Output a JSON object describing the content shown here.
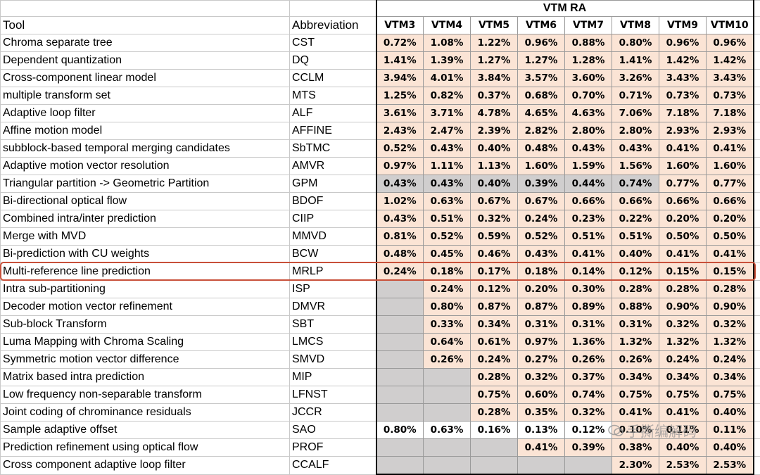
{
  "header": {
    "group_label": "VTM RA",
    "col_tool": "Tool",
    "col_abbr": "Abbreviation",
    "versions": [
      "VTM3",
      "VTM4",
      "VTM5",
      "VTM6",
      "VTM7",
      "VTM8",
      "VTM9",
      "VTM10"
    ]
  },
  "rows": [
    {
      "tool": "Chroma separate tree",
      "abbr": "CST",
      "vals": [
        "0.72%",
        "1.08%",
        "1.22%",
        "0.96%",
        "0.88%",
        "0.80%",
        "0.96%",
        "0.96%"
      ]
    },
    {
      "tool": "Dependent quantization",
      "abbr": "DQ",
      "vals": [
        "1.41%",
        "1.39%",
        "1.27%",
        "1.27%",
        "1.28%",
        "1.41%",
        "1.42%",
        "1.42%"
      ]
    },
    {
      "tool": "Cross-component linear model",
      "abbr": "CCLM",
      "vals": [
        "3.94%",
        "4.01%",
        "3.84%",
        "3.57%",
        "3.60%",
        "3.26%",
        "3.43%",
        "3.43%"
      ]
    },
    {
      "tool": "multiple transform set",
      "abbr": "MTS",
      "vals": [
        "1.25%",
        "0.82%",
        "0.37%",
        "0.68%",
        "0.70%",
        "0.71%",
        "0.73%",
        "0.73%"
      ]
    },
    {
      "tool": "Adaptive loop filter",
      "abbr": "ALF",
      "vals": [
        "3.61%",
        "3.71%",
        "4.78%",
        "4.65%",
        "4.63%",
        "7.06%",
        "7.18%",
        "7.18%"
      ]
    },
    {
      "tool": "Affine motion model",
      "abbr": "AFFINE",
      "vals": [
        "2.43%",
        "2.47%",
        "2.39%",
        "2.82%",
        "2.80%",
        "2.80%",
        "2.93%",
        "2.93%"
      ]
    },
    {
      "tool": "subblock-based temporal merging candidates",
      "abbr": "SbTMC",
      "vals": [
        "0.52%",
        "0.43%",
        "0.40%",
        "0.48%",
        "0.43%",
        "0.43%",
        "0.41%",
        "0.41%"
      ]
    },
    {
      "tool": "Adaptive motion vector resolution",
      "abbr": "AMVR",
      "vals": [
        "0.97%",
        "1.11%",
        "1.13%",
        "1.60%",
        "1.59%",
        "1.56%",
        "1.60%",
        "1.60%"
      ]
    },
    {
      "tool": "Triangular partition -> Geometric Partition",
      "abbr": "GPM",
      "vals": [
        "0.43%",
        "0.43%",
        "0.40%",
        "0.39%",
        "0.44%",
        "0.74%",
        "0.77%",
        "0.77%"
      ],
      "gray": [
        0,
        1,
        2,
        3,
        4,
        5
      ]
    },
    {
      "tool": "Bi-directional optical flow",
      "abbr": "BDOF",
      "vals": [
        "1.02%",
        "0.63%",
        "0.67%",
        "0.67%",
        "0.66%",
        "0.66%",
        "0.66%",
        "0.66%"
      ]
    },
    {
      "tool": "Combined intra/inter prediction",
      "abbr": "CIIP",
      "vals": [
        "0.43%",
        "0.51%",
        "0.32%",
        "0.24%",
        "0.23%",
        "0.22%",
        "0.20%",
        "0.20%"
      ]
    },
    {
      "tool": "Merge with MVD",
      "abbr": "MMVD",
      "vals": [
        "0.81%",
        "0.52%",
        "0.59%",
        "0.52%",
        "0.51%",
        "0.51%",
        "0.50%",
        "0.50%"
      ]
    },
    {
      "tool": "Bi-prediction with CU weights",
      "abbr": "BCW",
      "vals": [
        "0.48%",
        "0.45%",
        "0.46%",
        "0.43%",
        "0.41%",
        "0.40%",
        "0.41%",
        "0.41%"
      ]
    },
    {
      "tool": "Multi-reference line prediction",
      "abbr": "MRLP",
      "vals": [
        "0.24%",
        "0.18%",
        "0.17%",
        "0.18%",
        "0.14%",
        "0.12%",
        "0.15%",
        "0.15%"
      ],
      "highlight": true
    },
    {
      "tool": "Intra sub-partitioning",
      "abbr": "ISP",
      "vals": [
        "",
        "0.24%",
        "0.12%",
        "0.20%",
        "0.30%",
        "0.28%",
        "0.28%",
        "0.28%"
      ],
      "gray": [
        0
      ]
    },
    {
      "tool": "Decoder motion vector refinement",
      "abbr": "DMVR",
      "vals": [
        "",
        "0.80%",
        "0.87%",
        "0.87%",
        "0.89%",
        "0.88%",
        "0.90%",
        "0.90%"
      ],
      "gray": [
        0
      ]
    },
    {
      "tool": "Sub-block Transform",
      "abbr": "SBT",
      "vals": [
        "",
        "0.33%",
        "0.34%",
        "0.31%",
        "0.31%",
        "0.31%",
        "0.32%",
        "0.32%"
      ],
      "gray": [
        0
      ]
    },
    {
      "tool": "Luma Mapping with Chroma Scaling",
      "abbr": "LMCS",
      "vals": [
        "",
        "0.64%",
        "0.61%",
        "0.97%",
        "1.36%",
        "1.32%",
        "1.32%",
        "1.32%"
      ],
      "gray": [
        0
      ]
    },
    {
      "tool": "Symmetric motion vector difference",
      "abbr": "SMVD",
      "vals": [
        "",
        "0.26%",
        "0.24%",
        "0.27%",
        "0.26%",
        "0.26%",
        "0.24%",
        "0.24%"
      ],
      "gray": [
        0
      ]
    },
    {
      "tool": "Matrix based intra prediction",
      "abbr": "MIP",
      "vals": [
        "",
        "",
        "0.28%",
        "0.32%",
        "0.37%",
        "0.34%",
        "0.34%",
        "0.34%"
      ],
      "gray": [
        0,
        1
      ]
    },
    {
      "tool": "Low frequency non-separable transform",
      "abbr": "LFNST",
      "vals": [
        "",
        "",
        "0.75%",
        "0.60%",
        "0.74%",
        "0.75%",
        "0.75%",
        "0.75%"
      ],
      "gray": [
        0,
        1
      ]
    },
    {
      "tool": "Joint coding of chrominance residuals",
      "abbr": "JCCR",
      "vals": [
        "",
        "",
        "0.28%",
        "0.35%",
        "0.32%",
        "0.41%",
        "0.41%",
        "0.40%"
      ],
      "gray": [
        0,
        1
      ]
    },
    {
      "tool": "Sample adaptive offset",
      "abbr": "SAO",
      "vals": [
        "0.80%",
        "0.63%",
        "0.16%",
        "0.13%",
        "0.12%",
        "0.10%",
        "0.11%",
        "0.11%"
      ],
      "white": [
        0,
        1,
        2,
        3,
        4
      ]
    },
    {
      "tool": "Prediction refinement using optical flow",
      "abbr": "PROF",
      "vals": [
        "",
        "",
        "",
        "0.41%",
        "0.39%",
        "0.38%",
        "0.40%",
        "0.40%"
      ],
      "gray": [
        0,
        1,
        2
      ]
    },
    {
      "tool": "Cross component adaptive loop filter",
      "abbr": "CCALF",
      "vals": [
        "",
        "",
        "",
        "",
        "",
        "2.30%",
        "2.53%",
        "2.53%"
      ],
      "gray": [
        0,
        1,
        2,
        3,
        4
      ]
    }
  ],
  "watermark": "手撕编解码"
}
